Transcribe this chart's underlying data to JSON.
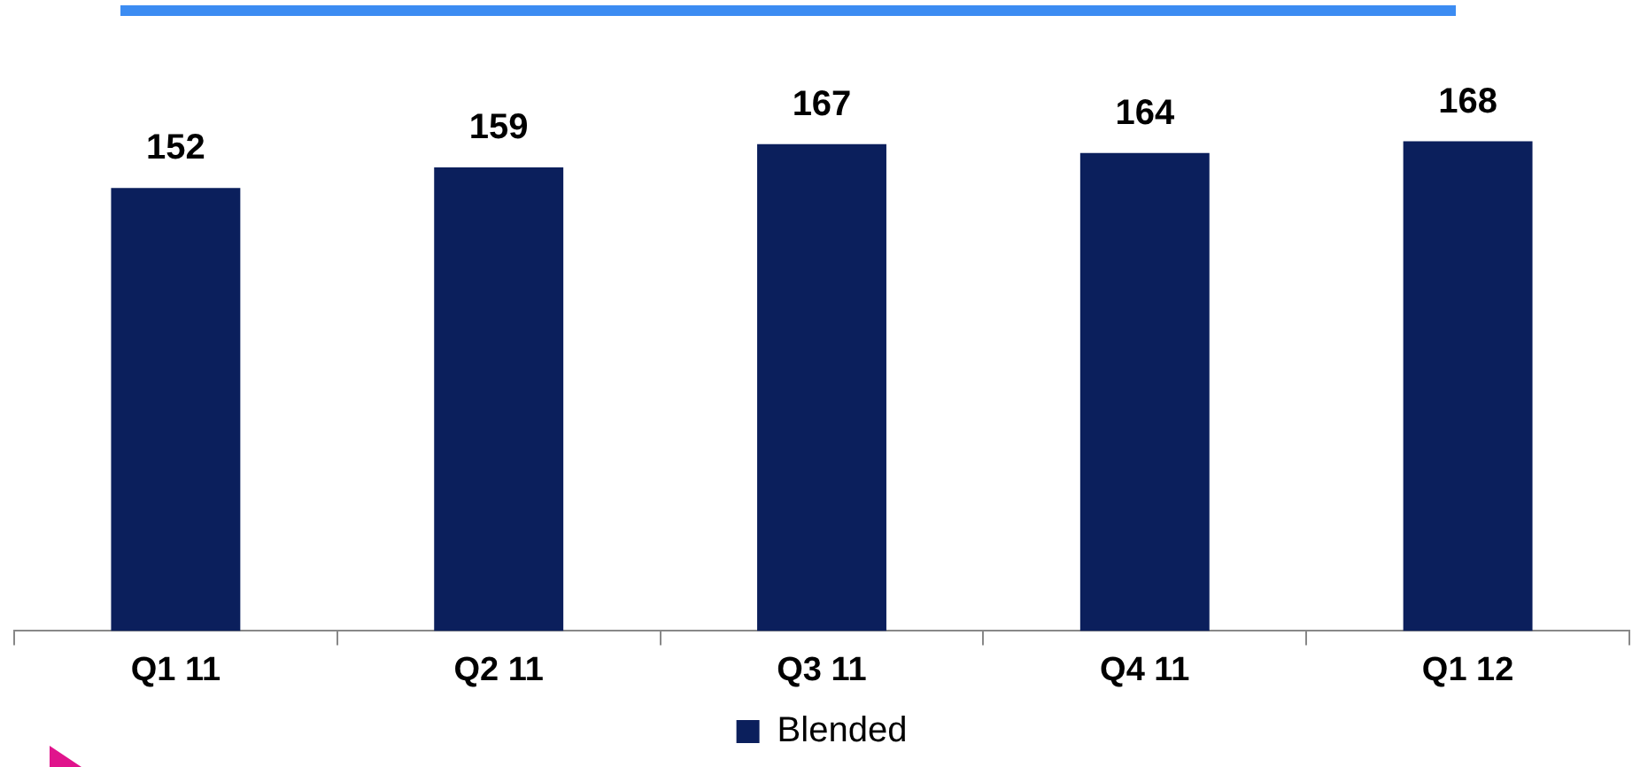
{
  "chart_data": {
    "type": "bar",
    "categories": [
      "Q1 11",
      "Q2 11",
      "Q3 11",
      "Q4 11",
      "Q1 12"
    ],
    "series": [
      {
        "name": "Blended",
        "color": "#0b1f5c",
        "values": [
          152,
          159,
          167,
          164,
          168
        ]
      }
    ],
    "tick_labels": "x",
    "grid": false,
    "legend": "bottom",
    "data_labels": true
  }
}
